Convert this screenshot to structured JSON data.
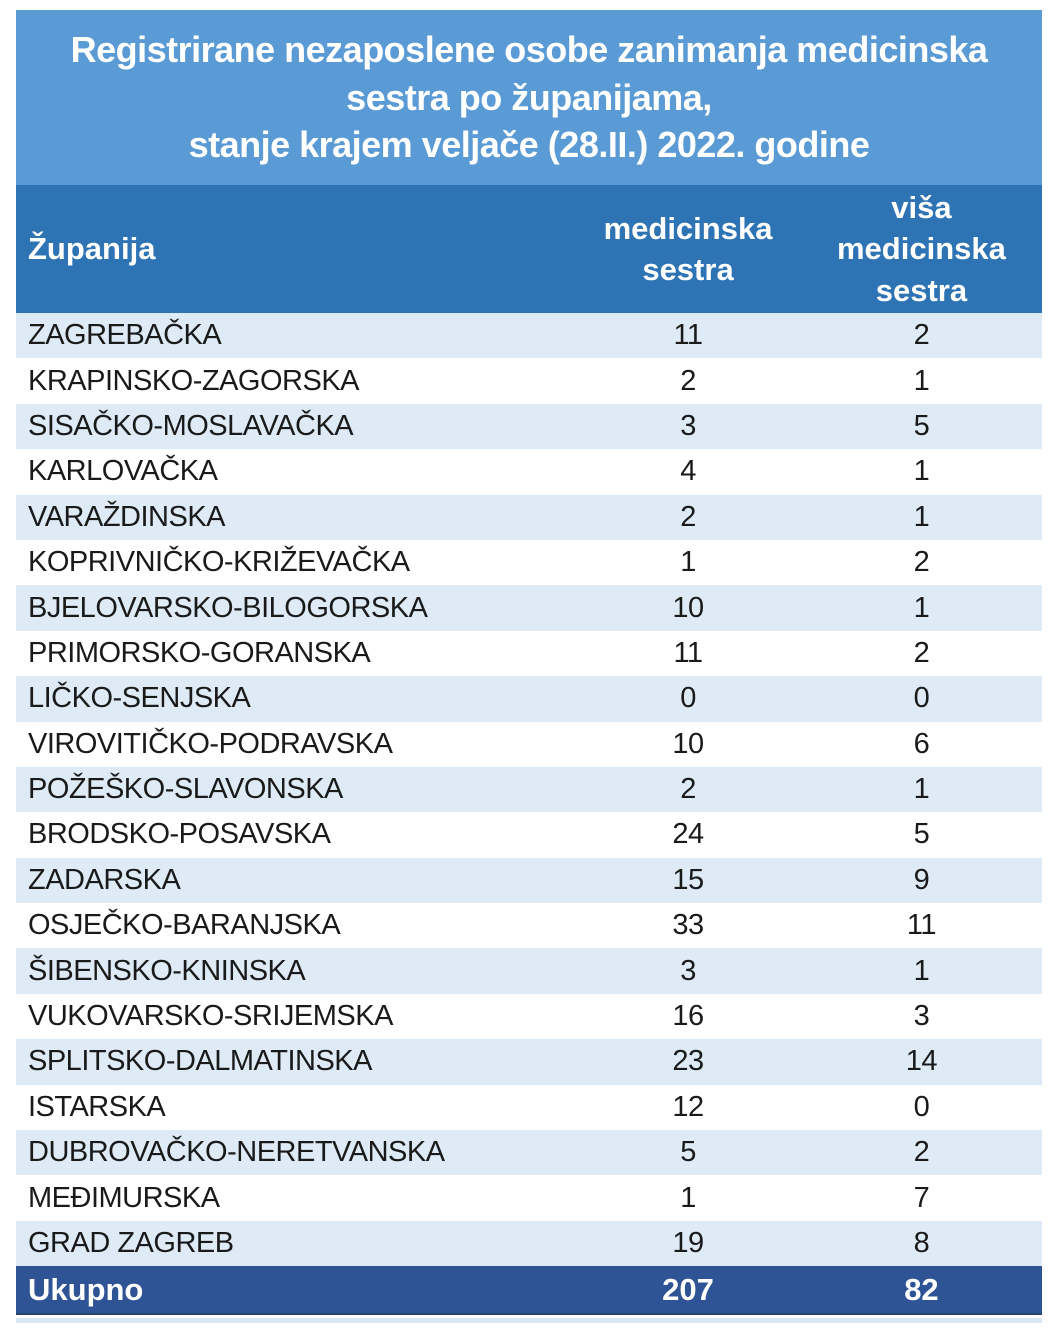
{
  "chart_data": {
    "type": "table",
    "title": "Registrirane nezaposlene osobe zanimanja medicinska\nsestra po županijama,\nstanje krajem veljače (28.II.) 2022. godine",
    "header": {
      "zupanija": "Županija",
      "medicinska_sestra": "medicinska\nsestra",
      "visa_medicinska_sestra": "viša\nmedicinska\nsestra"
    },
    "rows": [
      {
        "zupanija": "ZAGREBAČKA",
        "ms": 11,
        "vms": 2
      },
      {
        "zupanija": "KRAPINSKO-ZAGORSKA",
        "ms": 2,
        "vms": 1
      },
      {
        "zupanija": "SISAČKO-MOSLAVAČKA",
        "ms": 3,
        "vms": 5
      },
      {
        "zupanija": "KARLOVAČKA",
        "ms": 4,
        "vms": 1
      },
      {
        "zupanija": "VARAŽDINSKA",
        "ms": 2,
        "vms": 1
      },
      {
        "zupanija": "KOPRIVNIČKO-KRIŽEVAČKA",
        "ms": 1,
        "vms": 2
      },
      {
        "zupanija": "BJELOVARSKO-BILOGORSKA",
        "ms": 10,
        "vms": 1
      },
      {
        "zupanija": "PRIMORSKO-GORANSKA",
        "ms": 11,
        "vms": 2
      },
      {
        "zupanija": "LIČKO-SENJSKA",
        "ms": 0,
        "vms": 0
      },
      {
        "zupanija": "VIROVITIČKO-PODRAVSKA",
        "ms": 10,
        "vms": 6
      },
      {
        "zupanija": "POŽEŠKO-SLAVONSKA",
        "ms": 2,
        "vms": 1
      },
      {
        "zupanija": "BRODSKO-POSAVSKA",
        "ms": 24,
        "vms": 5
      },
      {
        "zupanija": "ZADARSKA",
        "ms": 15,
        "vms": 9
      },
      {
        "zupanija": "OSJEČKO-BARANJSKA",
        "ms": 33,
        "vms": 11
      },
      {
        "zupanija": "ŠIBENSKO-KNINSKA",
        "ms": 3,
        "vms": 1
      },
      {
        "zupanija": "VUKOVARSKO-SRIJEMSKA",
        "ms": 16,
        "vms": 3
      },
      {
        "zupanija": "SPLITSKO-DALMATINSKA",
        "ms": 23,
        "vms": 14
      },
      {
        "zupanija": "ISTARSKA",
        "ms": 12,
        "vms": 0
      },
      {
        "zupanija": "DUBROVAČKO-NERETVANSKA",
        "ms": 5,
        "vms": 2
      },
      {
        "zupanija": "MEĐIMURSKA",
        "ms": 1,
        "vms": 7
      },
      {
        "zupanija": "GRAD ZAGREB",
        "ms": 19,
        "vms": 8
      }
    ],
    "total": {
      "label": "Ukupno",
      "ms": 207,
      "vms": 82
    }
  },
  "colors": {
    "title_bg": "#5B9BD5",
    "header_bg": "#2E74B5",
    "row_alt_bg": "#DEEBF7",
    "row_bg": "#FFFFFF",
    "total_bg": "#2F5496",
    "header_text": "#FFFFFF",
    "row_text": "#1A1A1A"
  }
}
